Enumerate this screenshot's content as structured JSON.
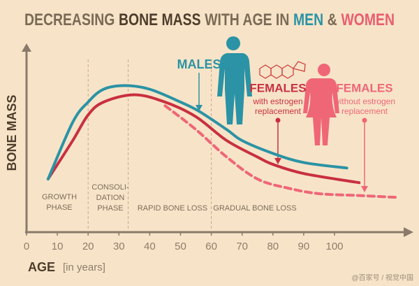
{
  "chart_data": {
    "type": "line",
    "title": [
      "DECREASING",
      "BONE MASS",
      "WITH AGE IN",
      "MEN",
      "&",
      "WOMEN"
    ],
    "title_colors": [
      "#7a6a56",
      "#4e3d2c",
      "#7a6a56",
      "#2b93a5",
      "#7a6a56",
      "#ea5d70"
    ],
    "x_label": "AGE",
    "x_unit": "[in years]",
    "y_label": "BONE MASS",
    "xlim": [
      0,
      124
    ],
    "ylim": [
      0,
      100
    ],
    "xticks": [
      0,
      10,
      20,
      30,
      40,
      50,
      60,
      70,
      80,
      90,
      100
    ],
    "phase_boundaries": [
      20,
      33,
      60
    ],
    "phases": [
      [
        "GROWTH",
        "PHASE"
      ],
      [
        "CONSOLI-",
        "DATION",
        "PHASE"
      ],
      [
        "RAPID BONE LOSS"
      ],
      [
        "GRADUAL BONE LOSS"
      ]
    ],
    "series": [
      {
        "name": "MALES",
        "color": "#2b93a5",
        "dashed": false,
        "notes": [],
        "x": [
          7,
          15,
          20,
          25,
          32,
          40,
          50,
          56,
          65,
          70,
          80,
          90,
          104
        ],
        "values": [
          29,
          60,
          71,
          78,
          80,
          78,
          71,
          66,
          56,
          50,
          43,
          38,
          35
        ]
      },
      {
        "name": "FEMALES",
        "color": "#c9303f",
        "dashed": false,
        "notes": [
          "with estrogen",
          "replacement"
        ],
        "x": [
          7,
          15,
          20,
          25,
          35,
          45,
          55,
          65,
          75,
          80,
          90,
          108
        ],
        "values": [
          29,
          50,
          64,
          71,
          75,
          71,
          63,
          50,
          41,
          37,
          32,
          27
        ]
      },
      {
        "name": "FEMALES",
        "color": "#ef6677",
        "dashed": true,
        "notes": [
          "without estrogen",
          "replacement"
        ],
        "x": [
          45,
          55,
          65,
          75,
          85,
          95,
          108,
          120
        ],
        "values": [
          69,
          56,
          41,
          29,
          24,
          21,
          20,
          19
        ]
      }
    ],
    "watermark": "@百家号 / 视觉中国"
  }
}
